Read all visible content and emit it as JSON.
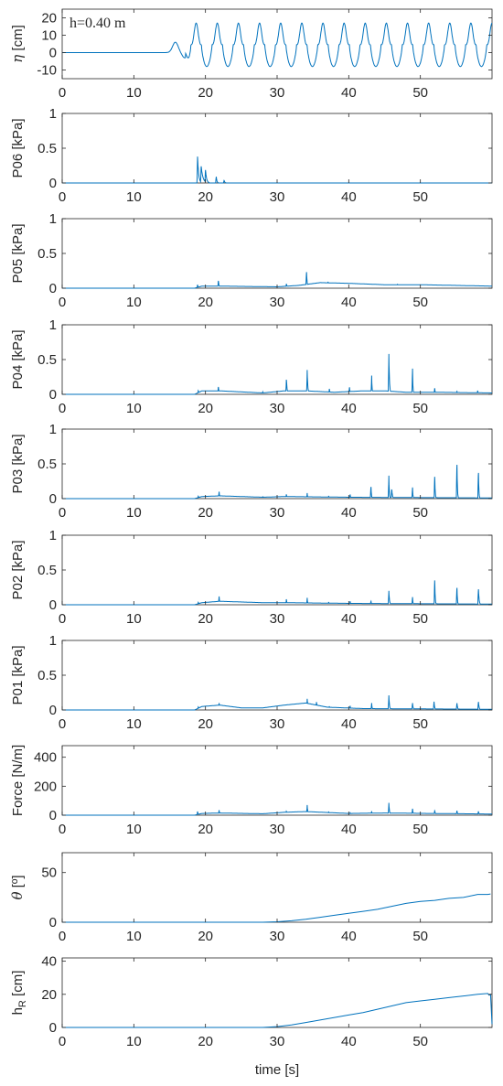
{
  "figure": {
    "xlabel": "time [s]"
  },
  "chart_data": [
    {
      "type": "line",
      "ylabel": "η [cm]",
      "annotation": "h=0.40 m",
      "xlim": [
        0,
        60
      ],
      "ylim": [
        -15,
        25
      ],
      "xticks": [
        0,
        10,
        20,
        30,
        40,
        50
      ],
      "yticks": [
        -10,
        0,
        10,
        20
      ],
      "grid": false,
      "signal": "wave",
      "wave": {
        "bump_t": 15.8,
        "bump_amp": 6,
        "first_crest": 18.7,
        "period": 2.95,
        "crest": 17,
        "trough": -8
      }
    },
    {
      "type": "line",
      "ylabel": "P06  [kPa]",
      "xlim": [
        0,
        60
      ],
      "ylim": [
        0,
        1
      ],
      "xticks": [
        0,
        10,
        20,
        30,
        40,
        50
      ],
      "yticks": [
        0,
        0.5,
        1
      ],
      "grid": false,
      "signal": "spikes",
      "baseline": [
        [
          0,
          0
        ],
        [
          60,
          0
        ]
      ],
      "spikes": [
        [
          18.9,
          0.38,
          0.5
        ],
        [
          19.4,
          0.25,
          0.8
        ],
        [
          20.0,
          0.2,
          0.5
        ],
        [
          21.5,
          0.1,
          0.3
        ],
        [
          22.6,
          0.04,
          0.3
        ]
      ]
    },
    {
      "type": "line",
      "ylabel": "P05  [kPa]",
      "xlim": [
        0,
        60
      ],
      "ylim": [
        0,
        1
      ],
      "xticks": [
        0,
        10,
        20,
        30,
        40,
        50
      ],
      "yticks": [
        0,
        0.5,
        1
      ],
      "grid": false,
      "signal": "spikes",
      "baseline": [
        [
          0,
          0
        ],
        [
          18.5,
          0
        ],
        [
          19.5,
          0.03
        ],
        [
          22,
          0.03
        ],
        [
          30,
          0.02
        ],
        [
          33,
          0.04
        ],
        [
          36,
          0.08
        ],
        [
          40,
          0.07
        ],
        [
          45,
          0.05
        ],
        [
          50,
          0.05
        ],
        [
          55,
          0.04
        ],
        [
          60,
          0.03
        ]
      ],
      "spikes": [
        [
          18.9,
          0.05,
          0.3
        ],
        [
          21.8,
          0.12,
          0.3
        ],
        [
          31.3,
          0.07,
          0.3
        ],
        [
          34.1,
          0.26,
          0.3
        ],
        [
          37.1,
          0.1,
          0.4
        ],
        [
          46.8,
          0.06,
          0.4
        ]
      ]
    },
    {
      "type": "line",
      "ylabel": "P04  [kPa]",
      "xlim": [
        0,
        60
      ],
      "ylim": [
        0,
        1
      ],
      "xticks": [
        0,
        10,
        20,
        30,
        40,
        50
      ],
      "yticks": [
        0,
        0.5,
        1
      ],
      "grid": false,
      "signal": "spikes",
      "baseline": [
        [
          0,
          0
        ],
        [
          18.5,
          0
        ],
        [
          19.5,
          0.05
        ],
        [
          22,
          0.05
        ],
        [
          28,
          0.02
        ],
        [
          31,
          0.05
        ],
        [
          34,
          0.05
        ],
        [
          38,
          0.03
        ],
        [
          42,
          0.05
        ],
        [
          45,
          0.05
        ],
        [
          48,
          0.03
        ],
        [
          52,
          0.03
        ],
        [
          60,
          0.02
        ]
      ],
      "spikes": [
        [
          19.0,
          0.06,
          0.3
        ],
        [
          21.8,
          0.12,
          0.3
        ],
        [
          28.0,
          0.04,
          0.2
        ],
        [
          31.3,
          0.24,
          0.3
        ],
        [
          34.2,
          0.35,
          0.3
        ],
        [
          37.3,
          0.09,
          0.2
        ],
        [
          40.1,
          0.12,
          0.2
        ],
        [
          43.2,
          0.27,
          0.2
        ],
        [
          45.6,
          0.58,
          0.3
        ],
        [
          48.9,
          0.37,
          0.2
        ],
        [
          52.0,
          0.1,
          0.2
        ],
        [
          55.1,
          0.05,
          0.2
        ],
        [
          58.0,
          0.06,
          0.2
        ]
      ]
    },
    {
      "type": "line",
      "ylabel": "P03  [kPa]",
      "xlim": [
        0,
        60
      ],
      "ylim": [
        0,
        1
      ],
      "xticks": [
        0,
        10,
        20,
        30,
        40,
        50
      ],
      "yticks": [
        0,
        0.5,
        1
      ],
      "grid": false,
      "signal": "spikes",
      "baseline": [
        [
          0,
          0
        ],
        [
          18.5,
          0
        ],
        [
          19.5,
          0.03
        ],
        [
          22,
          0.04
        ],
        [
          28,
          0.02
        ],
        [
          31,
          0.03
        ],
        [
          40,
          0.02
        ],
        [
          60,
          0.01
        ]
      ],
      "spikes": [
        [
          19.0,
          0.04,
          0.3
        ],
        [
          21.9,
          0.1,
          0.3
        ],
        [
          28.0,
          0.03,
          0.2
        ],
        [
          31.3,
          0.07,
          0.2
        ],
        [
          34.2,
          0.08,
          0.2
        ],
        [
          37.2,
          0.04,
          0.2
        ],
        [
          40.2,
          0.06,
          0.2
        ],
        [
          43.1,
          0.2,
          0.2
        ],
        [
          45.6,
          0.33,
          0.2
        ],
        [
          46.0,
          0.15,
          0.3
        ],
        [
          48.9,
          0.16,
          0.2
        ],
        [
          52.0,
          0.36,
          0.2
        ],
        [
          55.1,
          0.58,
          0.2
        ],
        [
          58.1,
          0.44,
          0.2
        ]
      ]
    },
    {
      "type": "line",
      "ylabel": "P02  [kPa]",
      "xlim": [
        0,
        60
      ],
      "ylim": [
        0,
        1
      ],
      "xticks": [
        0,
        10,
        20,
        30,
        40,
        50
      ],
      "yticks": [
        0,
        0.5,
        1
      ],
      "grid": false,
      "signal": "spikes",
      "baseline": [
        [
          0,
          0
        ],
        [
          18.5,
          0
        ],
        [
          19.5,
          0.03
        ],
        [
          22,
          0.05
        ],
        [
          28,
          0.03
        ],
        [
          31,
          0.03
        ],
        [
          40,
          0.02
        ],
        [
          60,
          0.01
        ]
      ],
      "spikes": [
        [
          19.0,
          0.04,
          0.3
        ],
        [
          21.9,
          0.12,
          0.3
        ],
        [
          28.0,
          0.03,
          0.2
        ],
        [
          31.3,
          0.09,
          0.2
        ],
        [
          34.2,
          0.1,
          0.2
        ],
        [
          37.2,
          0.04,
          0.2
        ],
        [
          40.2,
          0.05,
          0.2
        ],
        [
          43.1,
          0.06,
          0.2
        ],
        [
          45.6,
          0.2,
          0.3
        ],
        [
          48.9,
          0.11,
          0.2
        ],
        [
          52.0,
          0.4,
          0.2
        ],
        [
          55.1,
          0.29,
          0.2
        ],
        [
          58.1,
          0.25,
          0.3
        ]
      ]
    },
    {
      "type": "line",
      "ylabel": "P01  [kPa]",
      "xlim": [
        0,
        60
      ],
      "ylim": [
        0,
        1
      ],
      "xticks": [
        0,
        10,
        20,
        30,
        40,
        50
      ],
      "yticks": [
        0,
        0.5,
        1
      ],
      "grid": false,
      "signal": "spikes",
      "baseline": [
        [
          0,
          0
        ],
        [
          18.5,
          0
        ],
        [
          19.5,
          0.05
        ],
        [
          22,
          0.07
        ],
        [
          25,
          0.03
        ],
        [
          28,
          0.03
        ],
        [
          31,
          0.07
        ],
        [
          34,
          0.1
        ],
        [
          37,
          0.04
        ],
        [
          42,
          0.02
        ],
        [
          60,
          0.01
        ]
      ],
      "spikes": [
        [
          19.0,
          0.05,
          0.3
        ],
        [
          21.9,
          0.1,
          0.3
        ],
        [
          31.3,
          0.07,
          0.3
        ],
        [
          33.5,
          0.1,
          0.3
        ],
        [
          34.2,
          0.16,
          0.4
        ],
        [
          35.5,
          0.13,
          0.3
        ],
        [
          37.3,
          0.06,
          0.2
        ],
        [
          40.2,
          0.06,
          0.2
        ],
        [
          43.2,
          0.1,
          0.2
        ],
        [
          45.6,
          0.21,
          0.3
        ],
        [
          48.9,
          0.1,
          0.3
        ],
        [
          51.9,
          0.12,
          0.3
        ],
        [
          55.1,
          0.11,
          0.3
        ],
        [
          58.1,
          0.13,
          0.3
        ]
      ]
    },
    {
      "type": "line",
      "ylabel": "Force [N/m]",
      "xlim": [
        0,
        60
      ],
      "ylim": [
        0,
        480
      ],
      "xticks": [
        0,
        10,
        20,
        30,
        40,
        50
      ],
      "yticks": [
        0,
        200,
        400
      ],
      "grid": false,
      "signal": "spikes",
      "baseline": [
        [
          0,
          0
        ],
        [
          18.5,
          0
        ],
        [
          19.5,
          12
        ],
        [
          22,
          15
        ],
        [
          28,
          10
        ],
        [
          31,
          20
        ],
        [
          34,
          25
        ],
        [
          40,
          12
        ],
        [
          45,
          15
        ],
        [
          60,
          8
        ]
      ],
      "spikes": [
        [
          18.9,
          25,
          0.3
        ],
        [
          21.9,
          35,
          0.3
        ],
        [
          28.0,
          10,
          0.2
        ],
        [
          31.3,
          30,
          0.3
        ],
        [
          34.2,
          70,
          0.3
        ],
        [
          37.2,
          25,
          0.2
        ],
        [
          40.2,
          20,
          0.2
        ],
        [
          43.2,
          28,
          0.2
        ],
        [
          45.6,
          85,
          0.3
        ],
        [
          48.9,
          45,
          0.3
        ],
        [
          52.0,
          35,
          0.3
        ],
        [
          55.1,
          35,
          0.3
        ],
        [
          58.1,
          30,
          0.3
        ]
      ]
    },
    {
      "type": "line",
      "ylabel": "θ [º]",
      "xlim": [
        0,
        60
      ],
      "ylim": [
        0,
        70
      ],
      "xticks": [
        0,
        10,
        20,
        30,
        40,
        50
      ],
      "yticks": [
        0,
        50
      ],
      "grid": false,
      "signal": "ramp",
      "points": [
        [
          0,
          0
        ],
        [
          28,
          0
        ],
        [
          30,
          0.5
        ],
        [
          32,
          1.5
        ],
        [
          34,
          3
        ],
        [
          36,
          5
        ],
        [
          38,
          7
        ],
        [
          40,
          9
        ],
        [
          42,
          11
        ],
        [
          44,
          13
        ],
        [
          46,
          16
        ],
        [
          48,
          19
        ],
        [
          50,
          21
        ],
        [
          52,
          22
        ],
        [
          54,
          24
        ],
        [
          56,
          25
        ],
        [
          58,
          28
        ],
        [
          59.4,
          28
        ],
        [
          59.8,
          28.5
        ]
      ]
    },
    {
      "type": "line",
      "ylabel": "h_R [cm]",
      "xlim": [
        0,
        60
      ],
      "ylim": [
        0,
        42
      ],
      "xticks": [
        0,
        10,
        20,
        30,
        40,
        50
      ],
      "yticks": [
        0,
        20,
        40
      ],
      "grid": false,
      "signal": "ramp",
      "points": [
        [
          0,
          0
        ],
        [
          28,
          0
        ],
        [
          30,
          0.5
        ],
        [
          32,
          1.5
        ],
        [
          34,
          3
        ],
        [
          36,
          4.5
        ],
        [
          38,
          6
        ],
        [
          40,
          7.5
        ],
        [
          42,
          9
        ],
        [
          44,
          11
        ],
        [
          46,
          13
        ],
        [
          48,
          15
        ],
        [
          50,
          16
        ],
        [
          52,
          17
        ],
        [
          54,
          18
        ],
        [
          56,
          19
        ],
        [
          58,
          20
        ],
        [
          59.4,
          20.5
        ],
        [
          59.6,
          19.5
        ],
        [
          59.8,
          20
        ],
        [
          60,
          2
        ]
      ]
    }
  ]
}
